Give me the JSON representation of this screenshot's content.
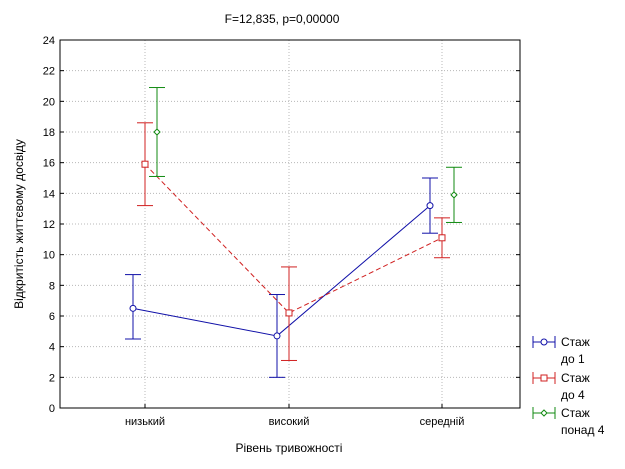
{
  "chart_data": {
    "type": "line",
    "title": "F=12,835, p=0,00000",
    "xlabel": "Рівень тривожності",
    "ylabel": "Відкритість життєвому досвіду",
    "categories": [
      "низький",
      "високий",
      "середній"
    ],
    "ylim": [
      0,
      24
    ],
    "yticks": [
      0,
      2,
      4,
      6,
      8,
      10,
      12,
      14,
      16,
      18,
      20,
      22,
      24
    ],
    "grid": true,
    "legend_position": "bottom-right",
    "series": [
      {
        "name": "Стаж до 1",
        "legend_lines": [
          "Стаж",
          "до 1"
        ],
        "color": "#1010a8",
        "marker": "circle",
        "line_style": "solid",
        "mean": [
          6.5,
          4.7,
          13.2
        ],
        "lower": [
          4.5,
          2.0,
          11.4
        ],
        "upper": [
          8.7,
          7.4,
          15.0
        ]
      },
      {
        "name": "Стаж до 4",
        "legend_lines": [
          "Стаж",
          "до 4"
        ],
        "color": "#d02020",
        "marker": "square",
        "line_style": "dashed",
        "mean": [
          15.9,
          6.2,
          11.1
        ],
        "lower": [
          13.2,
          3.1,
          9.8
        ],
        "upper": [
          18.6,
          9.2,
          12.4
        ]
      },
      {
        "name": "Стаж понад 4",
        "legend_lines": [
          "Стаж",
          "понад 4"
        ],
        "color": "#108a10",
        "marker": "diamond",
        "line_style": "none",
        "mean": [
          18.0,
          null,
          13.9
        ],
        "lower": [
          15.1,
          null,
          12.1
        ],
        "upper": [
          20.9,
          null,
          15.7
        ]
      }
    ]
  }
}
